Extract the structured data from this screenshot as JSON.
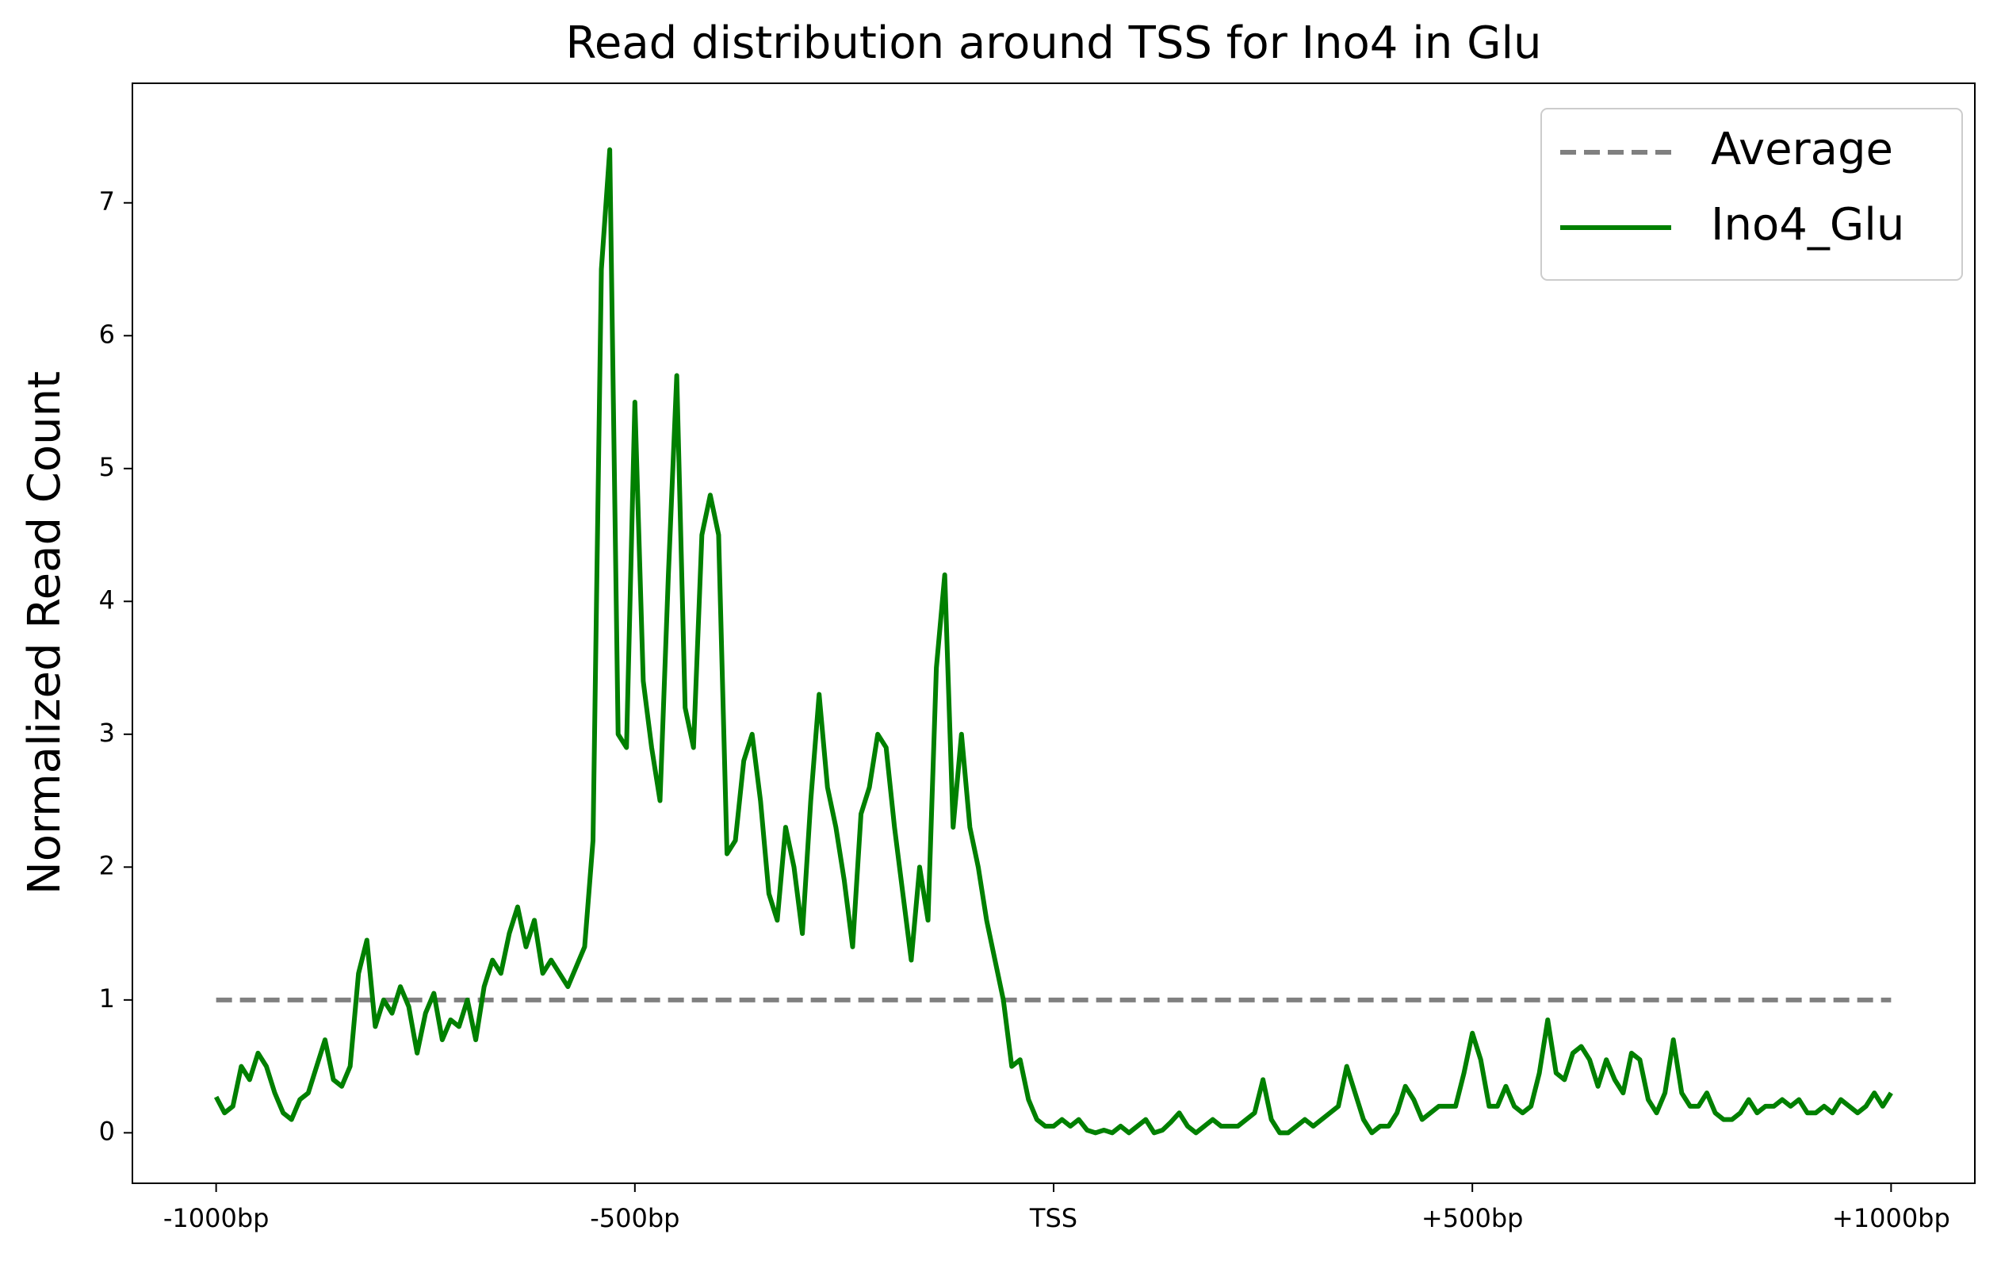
{
  "chart_data": {
    "type": "line",
    "title": "Read distribution around TSS for Ino4 in Glu",
    "y_label": "Normalized Read Count",
    "xlim": [
      -1100,
      1100
    ],
    "ylim": [
      -0.38,
      7.9
    ],
    "xticks": [
      {
        "value": -1000,
        "label": "-1000bp"
      },
      {
        "value": -500,
        "label": "-500bp"
      },
      {
        "value": 0,
        "label": "TSS"
      },
      {
        "value": 500,
        "label": "+500bp"
      },
      {
        "value": 1000,
        "label": "+1000bp"
      }
    ],
    "yticks": [
      0,
      1,
      2,
      3,
      4,
      5,
      6,
      7
    ],
    "grid": false,
    "legend": "upper right",
    "series": [
      {
        "name": "Average",
        "color": "#808080",
        "linestyle": "dashed",
        "x": [
          -1000,
          1000
        ],
        "values": [
          1,
          1
        ]
      },
      {
        "name": "Ino4_Glu",
        "color": "#008000",
        "linestyle": "solid",
        "x": [
          -1000,
          -990,
          -980,
          -970,
          -960,
          -950,
          -940,
          -930,
          -920,
          -910,
          -900,
          -890,
          -880,
          -870,
          -860,
          -850,
          -840,
          -830,
          -820,
          -810,
          -800,
          -790,
          -780,
          -770,
          -760,
          -750,
          -740,
          -730,
          -720,
          -710,
          -700,
          -690,
          -680,
          -670,
          -660,
          -650,
          -640,
          -630,
          -620,
          -610,
          -600,
          -590,
          -580,
          -570,
          -560,
          -550,
          -540,
          -530,
          -520,
          -510,
          -500,
          -490,
          -480,
          -470,
          -460,
          -450,
          -440,
          -430,
          -420,
          -410,
          -400,
          -390,
          -380,
          -370,
          -360,
          -350,
          -340,
          -330,
          -320,
          -310,
          -300,
          -290,
          -280,
          -270,
          -260,
          -250,
          -240,
          -230,
          -220,
          -210,
          -200,
          -190,
          -180,
          -170,
          -160,
          -150,
          -140,
          -130,
          -120,
          -110,
          -100,
          -90,
          -80,
          -70,
          -60,
          -50,
          -40,
          -30,
          -20,
          -10,
          0,
          10,
          20,
          30,
          40,
          50,
          60,
          70,
          80,
          90,
          100,
          110,
          120,
          130,
          140,
          150,
          160,
          170,
          180,
          190,
          200,
          210,
          220,
          230,
          240,
          250,
          260,
          270,
          280,
          290,
          300,
          310,
          320,
          330,
          340,
          350,
          360,
          370,
          380,
          390,
          400,
          410,
          420,
          430,
          440,
          450,
          460,
          470,
          480,
          490,
          500,
          510,
          520,
          530,
          540,
          550,
          560,
          570,
          580,
          590,
          600,
          610,
          620,
          630,
          640,
          650,
          660,
          670,
          680,
          690,
          700,
          710,
          720,
          730,
          740,
          750,
          760,
          770,
          780,
          790,
          800,
          810,
          820,
          830,
          840,
          850,
          860,
          870,
          880,
          890,
          900,
          910,
          920,
          930,
          940,
          950,
          960,
          970,
          980,
          990,
          1000
        ],
        "values": [
          0.27,
          0.15,
          0.2,
          0.5,
          0.4,
          0.6,
          0.5,
          0.3,
          0.15,
          0.1,
          0.25,
          0.3,
          0.5,
          0.7,
          0.4,
          0.35,
          0.5,
          1.2,
          1.45,
          0.8,
          1.0,
          0.9,
          1.1,
          0.95,
          0.6,
          0.9,
          1.05,
          0.7,
          0.85,
          0.8,
          1.0,
          0.7,
          1.1,
          1.3,
          1.2,
          1.5,
          1.7,
          1.4,
          1.6,
          1.2,
          1.3,
          1.2,
          1.1,
          1.25,
          1.4,
          2.2,
          6.5,
          7.4,
          3.0,
          2.9,
          5.5,
          3.4,
          2.9,
          2.5,
          4.2,
          5.7,
          3.2,
          2.9,
          4.5,
          4.8,
          4.5,
          2.1,
          2.2,
          2.8,
          3.0,
          2.5,
          1.8,
          1.6,
          2.3,
          2.0,
          1.5,
          2.5,
          3.3,
          2.6,
          2.3,
          1.9,
          1.4,
          2.4,
          2.6,
          3.0,
          2.9,
          2.3,
          1.8,
          1.3,
          2.0,
          1.6,
          3.5,
          4.2,
          2.3,
          3.0,
          2.3,
          2.0,
          1.6,
          1.3,
          1.0,
          0.5,
          0.55,
          0.25,
          0.1,
          0.05,
          0.05,
          0.1,
          0.05,
          0.1,
          0.02,
          0,
          0.02,
          0,
          0.05,
          0,
          0.05,
          0.1,
          0,
          0.02,
          0.08,
          0.15,
          0.05,
          0,
          0.05,
          0.1,
          0.05,
          0.05,
          0.05,
          0.1,
          0.15,
          0.4,
          0.1,
          0,
          0,
          0.05,
          0.1,
          0.05,
          0.1,
          0.15,
          0.2,
          0.5,
          0.3,
          0.1,
          0,
          0.05,
          0.05,
          0.15,
          0.35,
          0.25,
          0.1,
          0.15,
          0.2,
          0.2,
          0.2,
          0.45,
          0.75,
          0.55,
          0.2,
          0.2,
          0.35,
          0.2,
          0.15,
          0.2,
          0.45,
          0.85,
          0.45,
          0.4,
          0.6,
          0.65,
          0.55,
          0.35,
          0.55,
          0.4,
          0.3,
          0.6,
          0.55,
          0.25,
          0.15,
          0.3,
          0.7,
          0.3,
          0.2,
          0.2,
          0.3,
          0.15,
          0.1,
          0.1,
          0.15,
          0.25,
          0.15,
          0.2,
          0.2,
          0.25,
          0.2,
          0.25,
          0.15,
          0.15,
          0.2,
          0.15,
          0.25,
          0.2,
          0.15,
          0.2,
          0.3,
          0.2,
          0.3
        ]
      }
    ]
  }
}
